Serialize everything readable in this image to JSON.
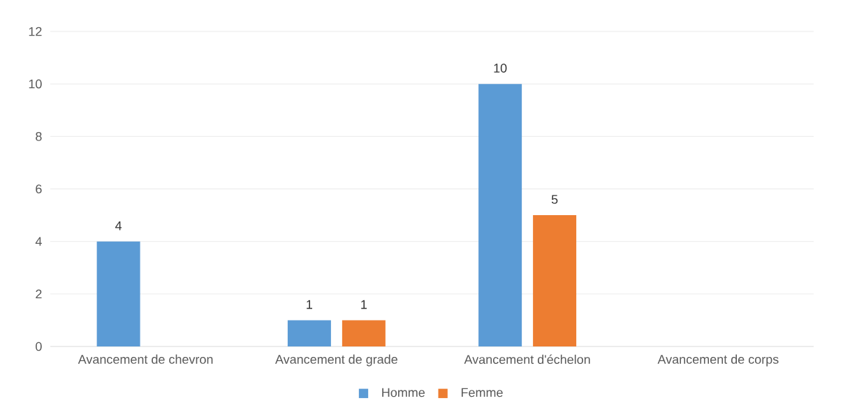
{
  "chart_data": {
    "type": "bar",
    "categories": [
      "Avancement de chevron",
      "Avancement de grade",
      "Avancement d'échelon",
      "Avancement de corps"
    ],
    "series": [
      {
        "name": "Homme",
        "color": "#5b9bd5",
        "values": [
          4,
          1,
          10,
          0
        ],
        "value_labels": [
          "4",
          "1",
          "10",
          null
        ]
      },
      {
        "name": "Femme",
        "color": "#ed7d31",
        "values": [
          0,
          1,
          5,
          0
        ],
        "value_labels": [
          null,
          "1",
          "5",
          null
        ]
      }
    ],
    "ylim": [
      0,
      12
    ],
    "yticks": [
      0,
      2,
      4,
      6,
      8,
      10,
      12
    ],
    "grid": "y",
    "legend": "bottom"
  }
}
